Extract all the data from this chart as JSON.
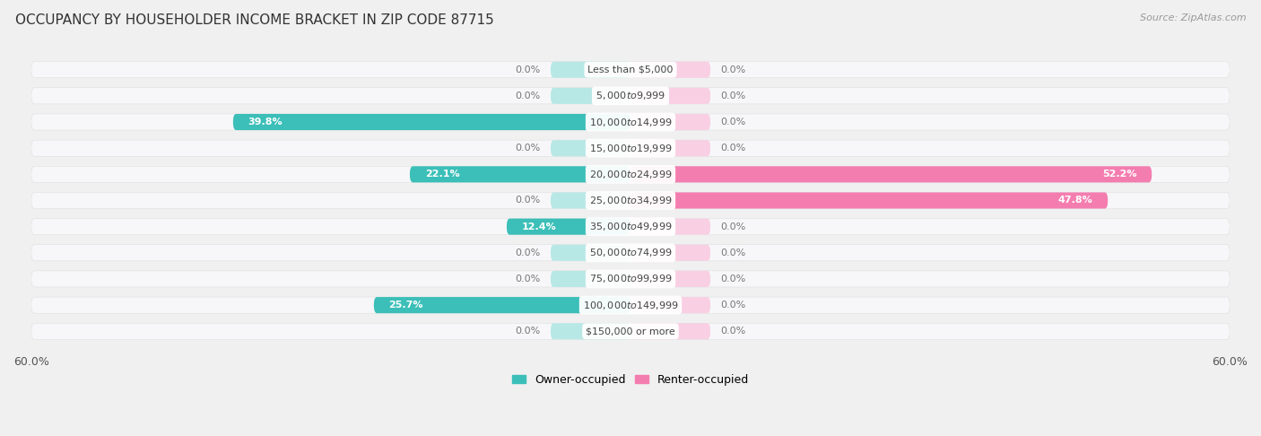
{
  "title": "OCCUPANCY BY HOUSEHOLDER INCOME BRACKET IN ZIP CODE 87715",
  "source": "Source: ZipAtlas.com",
  "categories": [
    "Less than $5,000",
    "$5,000 to $9,999",
    "$10,000 to $14,999",
    "$15,000 to $19,999",
    "$20,000 to $24,999",
    "$25,000 to $34,999",
    "$35,000 to $49,999",
    "$50,000 to $74,999",
    "$75,000 to $99,999",
    "$100,000 to $149,999",
    "$150,000 or more"
  ],
  "owner_values": [
    0.0,
    0.0,
    39.8,
    0.0,
    22.1,
    0.0,
    12.4,
    0.0,
    0.0,
    25.7,
    0.0
  ],
  "renter_values": [
    0.0,
    0.0,
    0.0,
    0.0,
    52.2,
    47.8,
    0.0,
    0.0,
    0.0,
    0.0,
    0.0
  ],
  "owner_color": "#3BBFB8",
  "renter_color": "#F47DB0",
  "background_color": "#f0f0f0",
  "bar_bg_color": "#e0e2e8",
  "row_bg_color": "#f7f7f9",
  "xlim": 60.0,
  "title_fontsize": 11,
  "source_fontsize": 8,
  "label_fontsize": 8,
  "category_fontsize": 8,
  "bar_height": 0.62,
  "fig_width": 14.06,
  "fig_height": 4.86
}
